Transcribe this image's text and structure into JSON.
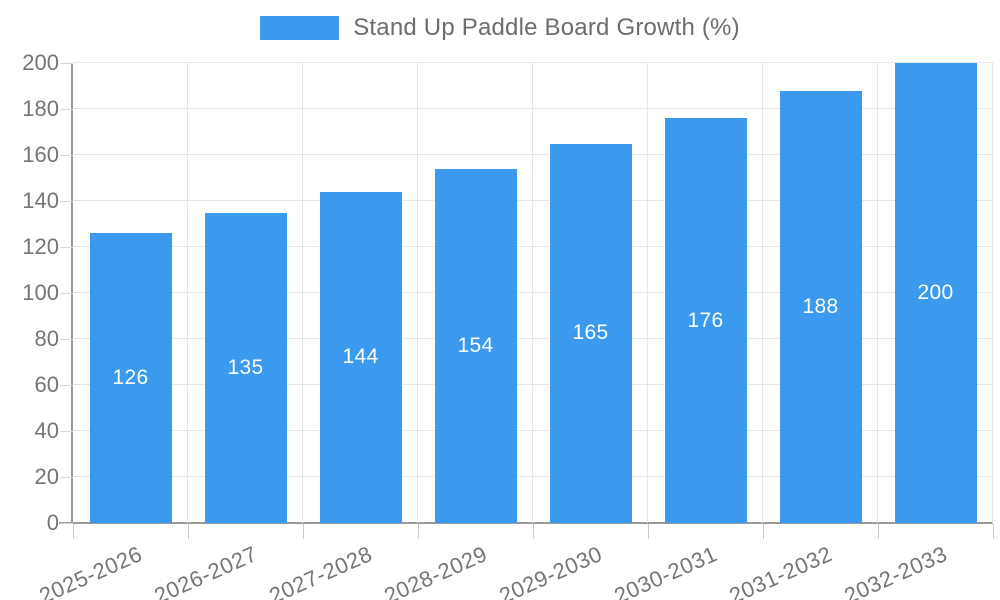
{
  "legend": {
    "label": "Stand Up Paddle Board Growth (%)",
    "swatch_color": "#3b99ee"
  },
  "chart_data": {
    "type": "bar",
    "title": "Stand Up Paddle Board Growth (%)",
    "categories": [
      "2025-2026",
      "2026-2027",
      "2027-2028",
      "2028-2029",
      "2029-2030",
      "2030-2031",
      "2031-2032",
      "2032-2033"
    ],
    "values": [
      126,
      135,
      144,
      154,
      165,
      176,
      188,
      200
    ],
    "value_labels": [
      "126",
      "135",
      "144",
      "154",
      "165",
      "176",
      "188",
      "200"
    ],
    "xlabel": "",
    "ylabel": "",
    "ylim": [
      0,
      200
    ],
    "ytick_step": 20,
    "ytick_labels": [
      "0",
      "20",
      "40",
      "60",
      "80",
      "100",
      "120",
      "140",
      "160",
      "180",
      "200"
    ],
    "grid": "on",
    "legend_position": "top-center",
    "bar_color": "#3b99ee",
    "value_label_style": "inside-center-white"
  }
}
